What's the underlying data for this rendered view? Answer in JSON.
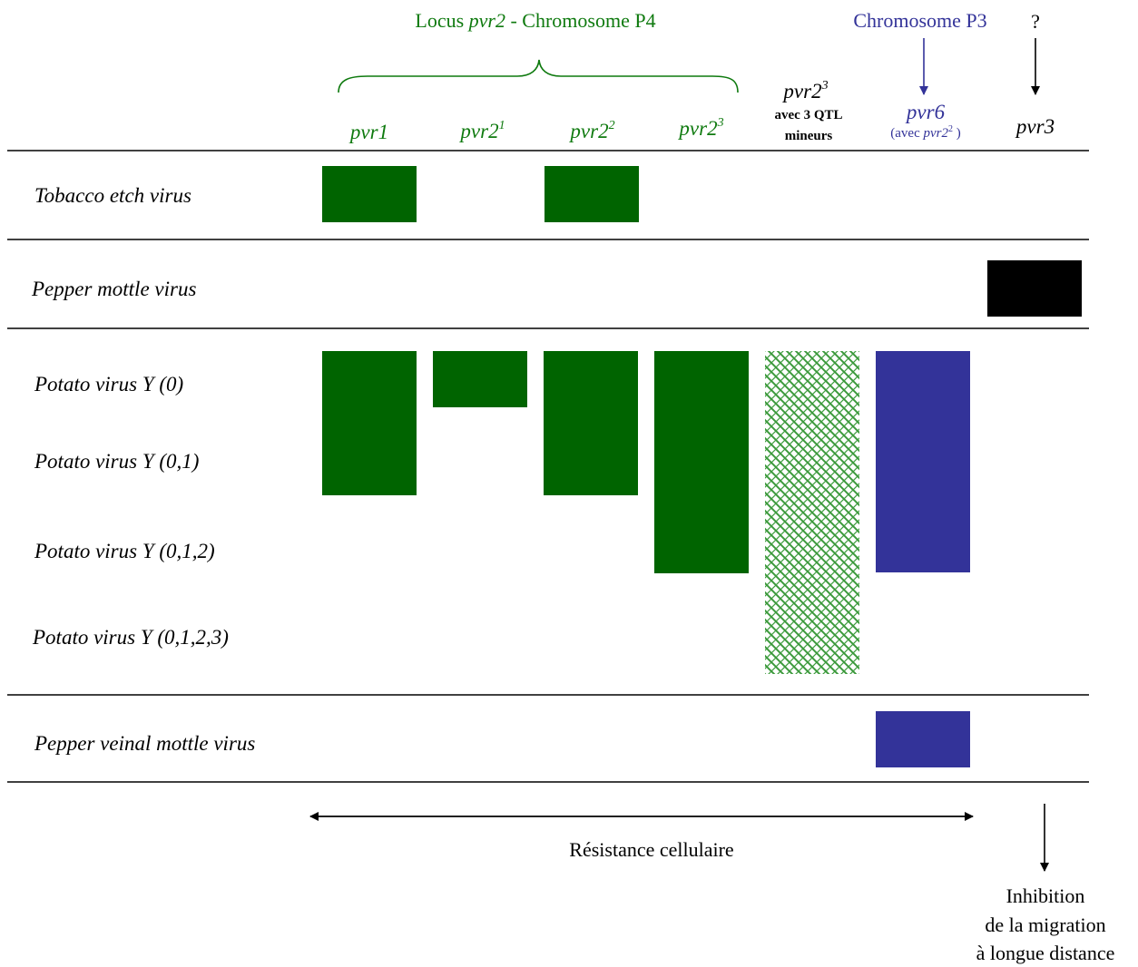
{
  "colors": {
    "green": "#006400",
    "label_green": "#0f7a0f",
    "blue": "#333399",
    "black": "#000000",
    "hatch_green": "#3c9a3c"
  },
  "header": {
    "locus_prefix": "Locus ",
    "locus_gene": "pvr2",
    "locus_suffix": " - Chromosome P4",
    "chromosome_p3": "Chromosome P3",
    "question_mark": "?"
  },
  "columns": {
    "pvr1": "pvr1",
    "pvr2_1_base": "pvr2",
    "pvr2_1_sup": "1",
    "pvr2_2_base": "pvr2",
    "pvr2_2_sup": "2",
    "pvr2_3_base": "pvr2",
    "pvr2_3_sup": "3",
    "qtl_base": "pvr2",
    "qtl_sup": "3",
    "qtl_line1": "avec 3 QTL",
    "qtl_line2": "mineurs",
    "pvr6": "pvr6",
    "pvr6_note_prefix": "(avec ",
    "pvr6_note_gene": "pvr2",
    "pvr6_note_sup": "2",
    "pvr6_note_suffix": " )",
    "pvr3": "pvr3"
  },
  "rows": {
    "tev": "Tobacco etch virus",
    "pepmov": "Pepper mottle virus",
    "pvy0": "Potato virus Y (0)",
    "pvy01": "Potato virus Y (0,1)",
    "pvy012": "Potato virus Y (0,1,2)",
    "pvy0123": "Potato virus Y (0,1,2,3)",
    "pvmv": "Pepper veinal mottle virus"
  },
  "footer": {
    "cellular": "Résistance cellulaire",
    "inhibition_line1": "Inhibition",
    "inhibition_line2": "de la migration",
    "inhibition_line3": "à longue distance"
  }
}
